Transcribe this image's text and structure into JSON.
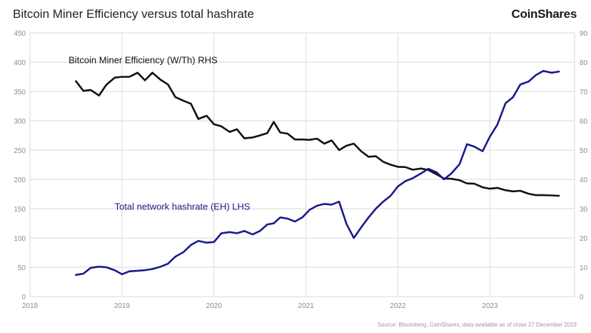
{
  "header": {
    "title": "Bitcoin Miner Efficiency versus total hashrate",
    "brand": "CoinShares"
  },
  "source": "Source: Bloomberg, CoinShares, data available as of close 27 December 2023",
  "colors": {
    "efficiency": "#111111",
    "hashrate": "#1a1a8c",
    "grid": "#d9d9d9",
    "axis_text": "#8c8c8c"
  },
  "chart_data": {
    "type": "line",
    "title": "Bitcoin Miner Efficiency versus total hashrate",
    "x_ticks": [
      "2018",
      "2019",
      "2020",
      "2021",
      "2022",
      "2023"
    ],
    "xlim": [
      2018.0,
      2023.92
    ],
    "ylim_left": [
      0,
      450
    ],
    "ylim_right": [
      0,
      90
    ],
    "y_ticks_left": [
      0,
      50,
      100,
      150,
      200,
      250,
      300,
      350,
      400,
      450
    ],
    "y_ticks_right": [
      0,
      10,
      20,
      30,
      40,
      50,
      60,
      70,
      80,
      90
    ],
    "grid": true,
    "series": [
      {
        "name": "Bitcoin Miner Efficiency (W/Th) RHS",
        "axis": "right",
        "color": "#111111",
        "x": [
          2018.5,
          2018.58,
          2018.66,
          2018.75,
          2018.83,
          2018.92,
          2019.0,
          2019.08,
          2019.17,
          2019.25,
          2019.33,
          2019.42,
          2019.5,
          2019.58,
          2019.67,
          2019.75,
          2019.83,
          2019.92,
          2020.0,
          2020.08,
          2020.17,
          2020.25,
          2020.33,
          2020.42,
          2020.5,
          2020.58,
          2020.65,
          2020.72,
          2020.8,
          2020.88,
          2020.96,
          2021.04,
          2021.12,
          2021.2,
          2021.28,
          2021.36,
          2021.44,
          2021.52,
          2021.6,
          2021.68,
          2021.76,
          2021.84,
          2021.92,
          2022.0,
          2022.08,
          2022.16,
          2022.25,
          2022.33,
          2022.42,
          2022.5,
          2022.58,
          2022.67,
          2022.75,
          2022.83,
          2022.92,
          2023.0,
          2023.08,
          2023.17,
          2023.25,
          2023.33,
          2023.42,
          2023.5,
          2023.58,
          2023.67,
          2023.75
        ],
        "y": [
          73.5,
          70.2,
          70.5,
          68.6,
          72.3,
          74.7,
          75.0,
          75.0,
          76.4,
          73.8,
          76.4,
          74.0,
          72.4,
          68.1,
          66.8,
          65.8,
          60.6,
          61.7,
          58.8,
          58.1,
          56.2,
          57.1,
          54.0,
          54.3,
          55.0,
          55.8,
          59.6,
          56.0,
          55.6,
          53.6,
          53.6,
          53.5,
          53.9,
          52.2,
          53.3,
          50.0,
          51.5,
          52.2,
          49.6,
          47.7,
          47.9,
          46.0,
          45.0,
          44.3,
          44.2,
          43.3,
          43.7,
          43.2,
          41.7,
          40.3,
          40.2,
          39.7,
          38.6,
          38.5,
          37.3,
          36.8,
          37.1,
          36.3,
          35.9,
          36.1,
          35.1,
          34.6,
          34.6,
          34.5,
          34.4
        ]
      },
      {
        "name": "Total network hashrate (EH) LHS",
        "axis": "left",
        "color": "#1a1a8c",
        "x": [
          2018.5,
          2018.58,
          2018.66,
          2018.75,
          2018.83,
          2018.92,
          2019.0,
          2019.08,
          2019.17,
          2019.25,
          2019.33,
          2019.42,
          2019.5,
          2019.58,
          2019.67,
          2019.75,
          2019.83,
          2019.92,
          2020.0,
          2020.08,
          2020.17,
          2020.25,
          2020.33,
          2020.42,
          2020.5,
          2020.58,
          2020.65,
          2020.72,
          2020.8,
          2020.88,
          2020.96,
          2021.04,
          2021.12,
          2021.2,
          2021.28,
          2021.36,
          2021.44,
          2021.52,
          2021.6,
          2021.68,
          2021.76,
          2021.84,
          2021.92,
          2022.0,
          2022.08,
          2022.16,
          2022.25,
          2022.33,
          2022.42,
          2022.5,
          2022.58,
          2022.67,
          2022.75,
          2022.83,
          2022.92,
          2023.0,
          2023.08,
          2023.17,
          2023.25,
          2023.33,
          2023.42,
          2023.5,
          2023.58,
          2023.67,
          2023.75
        ],
        "y": [
          37,
          39,
          49,
          51,
          50,
          45,
          38,
          43,
          44,
          45,
          47,
          51,
          56,
          68,
          76,
          88,
          95,
          92,
          93,
          108,
          110,
          108,
          112,
          106,
          112,
          123,
          125,
          135,
          133,
          128,
          135,
          148,
          155,
          158,
          157,
          162,
          124,
          100,
          118,
          135,
          150,
          162,
          172,
          188,
          197,
          202,
          210,
          218,
          212,
          200,
          210,
          226,
          260,
          256,
          248,
          273,
          293,
          330,
          340,
          362,
          367,
          378,
          385,
          382,
          384
        ]
      }
    ],
    "annotations": [
      {
        "text": "Bitcoin Miner Efficiency (W/Th) RHS",
        "x": 2018.42,
        "y": 398,
        "axis": "left",
        "color": "#111111"
      },
      {
        "text": "Total network hashrate (EH) LHS",
        "x": 2018.92,
        "y": 148,
        "axis": "left",
        "color": "#1a1a8c"
      }
    ]
  }
}
